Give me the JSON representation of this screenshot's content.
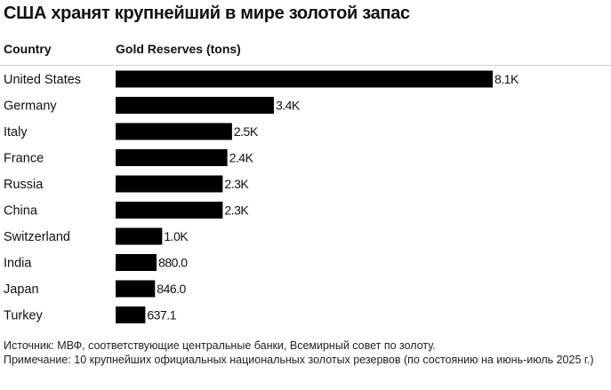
{
  "chart_data": {
    "type": "bar",
    "orientation": "horizontal",
    "title": "США хранят крупнейший в мире золотой запас",
    "category_header": "Country",
    "value_header": "Gold Reserves (tons)",
    "categories": [
      "United States",
      "Germany",
      "Italy",
      "France",
      "Russia",
      "China",
      "Switzerland",
      "India",
      "Japan",
      "Turkey"
    ],
    "values": [
      8100,
      3400,
      2500,
      2400,
      2300,
      2300,
      1000,
      880.0,
      846.0,
      637.1
    ],
    "value_labels": [
      "8.1K",
      "3.4K",
      "2.5K",
      "2.4K",
      "2.3K",
      "2.3K",
      "1.0K",
      "880.0",
      "846.0",
      "637.1"
    ],
    "xlim": [
      0,
      8100
    ],
    "grid": false,
    "legend": "none",
    "bar_color": "#000000"
  },
  "footer": {
    "source": "Источник: МВФ, соответствующие центральные банки, Всемирный совет по золоту.",
    "note": "Примечание: 10 крупнейших официальных национальных золотых резервов (по состоянию на июнь-июль 2025 г.)"
  }
}
